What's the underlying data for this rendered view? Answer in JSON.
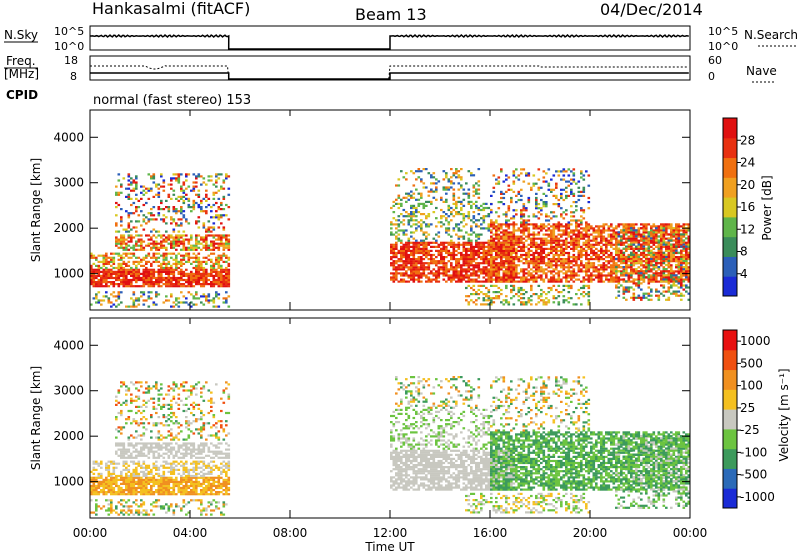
{
  "header": {
    "station": "Hankasalmi (fitACF)",
    "beam": "Beam 13",
    "date": "04/Dec/2014"
  },
  "panels": {
    "nsky": {
      "left_label": "N.Sky",
      "right_label": "N.Search",
      "left_ticks": [
        "10^5",
        "10^0"
      ],
      "right_ticks": [
        "10^5",
        "10^0"
      ]
    },
    "freq": {
      "left_label_1": "Freq.",
      "left_label_2": "[MHz]",
      "right_label": "Nave",
      "left_ticks": [
        "18",
        "8"
      ],
      "right_ticks": [
        "60",
        "0"
      ]
    },
    "cpid": {
      "label": "CPID",
      "text": "normal (fast stereo) 153"
    }
  },
  "colors": {
    "power_scale": [
      "#1a2bd6",
      "#2b5fb8",
      "#3a8c5a",
      "#5fb54a",
      "#d8c822",
      "#f0a020",
      "#f07010",
      "#e83010",
      "#e01010"
    ],
    "velocity_scale": [
      "#1a2bd6",
      "#2b6ab8",
      "#3c9a5c",
      "#6cc440",
      "#c8c8c0",
      "#f4c020",
      "#f09020",
      "#f05010",
      "#e81010"
    ]
  },
  "chart_data": [
    {
      "type": "heatmap",
      "name": "power",
      "ylabel": "Slant Range [km]",
      "xlabel": "",
      "yticks": [
        "1000",
        "2000",
        "3000",
        "4000"
      ],
      "ylim": [
        200,
        4600
      ],
      "xlim": [
        0,
        24
      ],
      "colorbar": {
        "label": "Power [dB]",
        "ticks": [
          "4",
          "8",
          "12",
          "16",
          "20",
          "24",
          "28"
        ],
        "range": [
          0,
          32
        ]
      },
      "data_intervals_hours": [
        [
          0,
          5.5
        ],
        [
          12,
          24
        ]
      ]
    },
    {
      "type": "heatmap",
      "name": "velocity",
      "ylabel": "Slant Range [km]",
      "xlabel": "Time UT",
      "yticks": [
        "1000",
        "2000",
        "3000",
        "4000"
      ],
      "ylim": [
        200,
        4600
      ],
      "xlim": [
        0,
        24
      ],
      "xticks": [
        "00:00",
        "04:00",
        "08:00",
        "12:00",
        "16:00",
        "20:00",
        "00:00"
      ],
      "colorbar": {
        "label": "Velocity [m s⁻¹]",
        "ticks": [
          "1000",
          "500",
          "100",
          "25",
          "-25",
          "-100",
          "-500",
          "-1000"
        ]
      },
      "data_intervals_hours": [
        [
          0,
          5.5
        ],
        [
          12,
          24
        ]
      ]
    }
  ]
}
